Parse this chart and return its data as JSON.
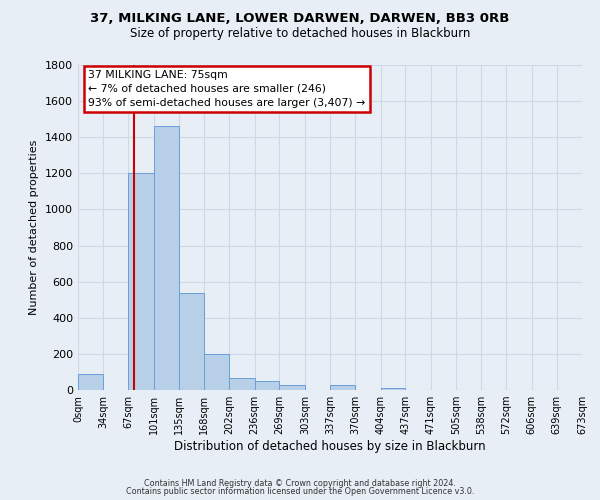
{
  "title1": "37, MILKING LANE, LOWER DARWEN, DARWEN, BB3 0RB",
  "title2": "Size of property relative to detached houses in Blackburn",
  "xlabel": "Distribution of detached houses by size in Blackburn",
  "ylabel": "Number of detached properties",
  "bar_edges": [
    0,
    34,
    67,
    101,
    135,
    168,
    202,
    236,
    269,
    303,
    337,
    370,
    404,
    437,
    471,
    505,
    538,
    572,
    606,
    639,
    673
  ],
  "bar_heights": [
    90,
    0,
    1200,
    1460,
    540,
    200,
    65,
    48,
    30,
    0,
    25,
    0,
    10,
    0,
    0,
    0,
    0,
    0,
    0,
    0
  ],
  "bar_color": "#b8cfe8",
  "bar_edge_color": "#6a9fd8",
  "property_line_x": 75,
  "property_line_color": "#cc0000",
  "ylim": [
    0,
    1800
  ],
  "yticks": [
    0,
    200,
    400,
    600,
    800,
    1000,
    1200,
    1400,
    1600,
    1800
  ],
  "xtick_labels": [
    "0sqm",
    "34sqm",
    "67sqm",
    "101sqm",
    "135sqm",
    "168sqm",
    "202sqm",
    "236sqm",
    "269sqm",
    "303sqm",
    "337sqm",
    "370sqm",
    "404sqm",
    "437sqm",
    "471sqm",
    "505sqm",
    "538sqm",
    "572sqm",
    "606sqm",
    "639sqm",
    "673sqm"
  ],
  "annotation_title": "37 MILKING LANE: 75sqm",
  "annotation_line1": "← 7% of detached houses are smaller (246)",
  "annotation_line2": "93% of semi-detached houses are larger (3,407) →",
  "annotation_box_color": "#ffffff",
  "annotation_box_edge_color": "#cc0000",
  "grid_color": "#d0d8e8",
  "bg_color": "#e8eef5",
  "footer1": "Contains HM Land Registry data © Crown copyright and database right 2024.",
  "footer2": "Contains public sector information licensed under the Open Government Licence v3.0."
}
